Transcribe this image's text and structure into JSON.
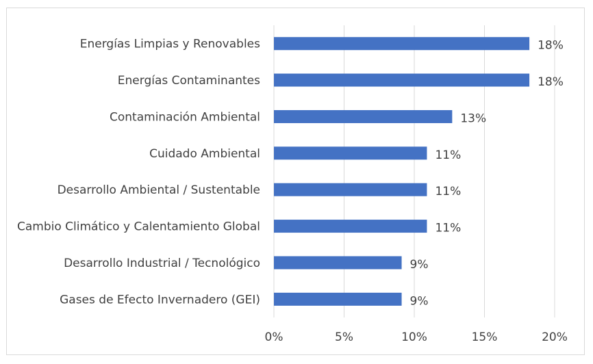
{
  "chart_data": {
    "type": "bar",
    "orientation": "horizontal",
    "title": "",
    "xlabel": "",
    "ylabel": "",
    "categories": [
      "Energías Limpias y Renovables",
      "Energías Contaminantes",
      "Contaminación Ambiental",
      "Cuidado Ambiental",
      "Desarrollo Ambiental / Sustentable",
      "Cambio Climático y Calentamiento Global",
      "Desarrollo Industrial / Tecnológico",
      "Gases de Efecto Invernadero (GEI)"
    ],
    "values": [
      18.2,
      18.2,
      12.7,
      10.9,
      10.9,
      10.9,
      9.1,
      9.1
    ],
    "data_labels": [
      "18%",
      "18%",
      "13%",
      "11%",
      "11%",
      "11%",
      "9%",
      "9%"
    ],
    "xlim": [
      0,
      20
    ],
    "x_ticks": [
      0,
      5,
      10,
      15,
      20
    ],
    "x_tick_labels": [
      "0%",
      "5%",
      "10%",
      "15%",
      "20%"
    ],
    "grid": "vertical",
    "bar_color": "#4472c4"
  }
}
